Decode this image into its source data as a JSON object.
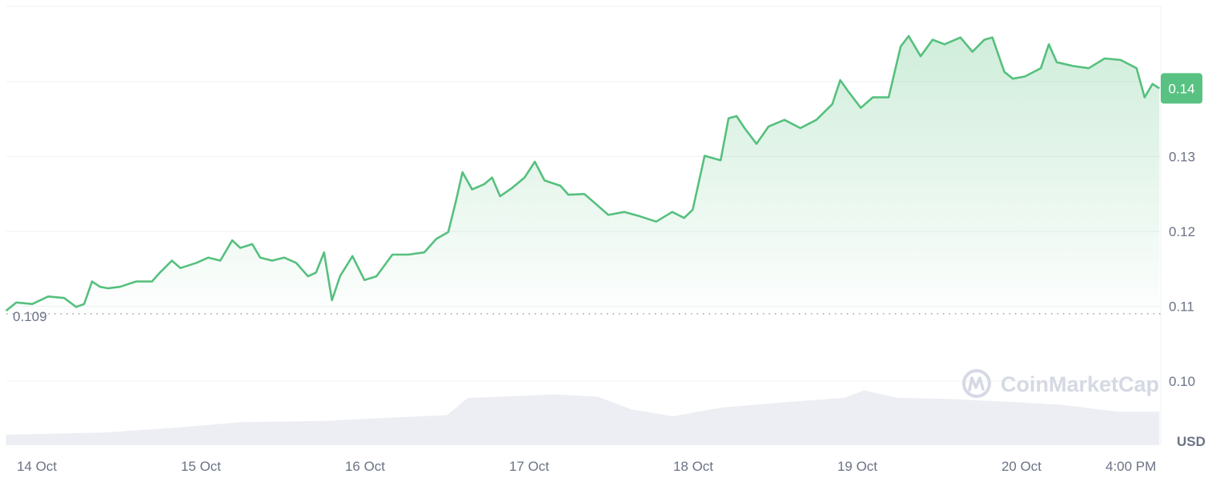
{
  "chart_data": {
    "type": "area",
    "currency_label": "USD",
    "watermark": "CoinMarketCap",
    "current_price_label": "0.14",
    "baseline": {
      "value": 0.109,
      "label": "0.109"
    },
    "ylim": [
      0.094,
      0.15
    ],
    "y_ticks": [
      {
        "value": 0.14,
        "label": "0.14"
      },
      {
        "value": 0.13,
        "label": "0.13"
      },
      {
        "value": 0.12,
        "label": "0.12"
      },
      {
        "value": 0.11,
        "label": "0.11"
      },
      {
        "value": 0.1,
        "label": "0.10"
      }
    ],
    "x_ticks": [
      {
        "time": "14 Oct 00:00",
        "label": "14 Oct"
      },
      {
        "time": "15 Oct 00:00",
        "label": "15 Oct"
      },
      {
        "time": "16 Oct 00:00",
        "label": "16 Oct"
      },
      {
        "time": "17 Oct 00:00",
        "label": "17 Oct"
      },
      {
        "time": "18 Oct 00:00",
        "label": "18 Oct"
      },
      {
        "time": "19 Oct 00:00",
        "label": "19 Oct"
      },
      {
        "time": "20 Oct 00:00",
        "label": "20 Oct"
      },
      {
        "time": "20 Oct 16:00",
        "label": "4:00 PM"
      }
    ],
    "grid": true,
    "colors": {
      "line": "#56c07e",
      "price_tag": "#58c282",
      "volume": "#eceef3",
      "grid": "#eff1f4",
      "text": "#6b7385"
    },
    "price": [
      [
        "13 Oct 19:30",
        0.1094
      ],
      [
        "13 Oct 21:00",
        0.1105
      ],
      [
        "13 Oct 23:20",
        0.1103
      ],
      [
        "14 Oct 01:40",
        0.1113
      ],
      [
        "14 Oct 04:00",
        0.1111
      ],
      [
        "14 Oct 05:45",
        0.1099
      ],
      [
        "14 Oct 06:55",
        0.1103
      ],
      [
        "14 Oct 08:05",
        0.1133
      ],
      [
        "14 Oct 09:15",
        0.1126
      ],
      [
        "14 Oct 10:25",
        0.1124
      ],
      [
        "14 Oct 12:10",
        0.1126
      ],
      [
        "14 Oct 14:30",
        0.1133
      ],
      [
        "14 Oct 16:50",
        0.1133
      ],
      [
        "14 Oct 18:00",
        0.1145
      ],
      [
        "14 Oct 19:45",
        0.1161
      ],
      [
        "14 Oct 21:00",
        0.1151
      ],
      [
        "14 Oct 23:20",
        0.1158
      ],
      [
        "15 Oct 01:05",
        0.1165
      ],
      [
        "15 Oct 02:50",
        0.1161
      ],
      [
        "15 Oct 04:35",
        0.1188
      ],
      [
        "15 Oct 05:45",
        0.1178
      ],
      [
        "15 Oct 07:30",
        0.1183
      ],
      [
        "15 Oct 08:40",
        0.1165
      ],
      [
        "15 Oct 10:25",
        0.1161
      ],
      [
        "15 Oct 12:10",
        0.1165
      ],
      [
        "15 Oct 13:55",
        0.1158
      ],
      [
        "15 Oct 15:40",
        0.114
      ],
      [
        "15 Oct 16:50",
        0.1145
      ],
      [
        "15 Oct 18:00",
        0.1172
      ],
      [
        "15 Oct 19:10",
        0.1108
      ],
      [
        "15 Oct 20:20",
        0.114
      ],
      [
        "15 Oct 22:10",
        0.1167
      ],
      [
        "15 Oct 23:55",
        0.1135
      ],
      [
        "16 Oct 01:40",
        0.114
      ],
      [
        "16 Oct 04:00",
        0.1169
      ],
      [
        "16 Oct 06:20",
        0.1169
      ],
      [
        "16 Oct 08:40",
        0.1172
      ],
      [
        "16 Oct 10:25",
        0.119
      ],
      [
        "16 Oct 12:10",
        0.1199
      ],
      [
        "16 Oct 13:20",
        0.1242
      ],
      [
        "16 Oct 14:15",
        0.1279
      ],
      [
        "16 Oct 15:40",
        0.1256
      ],
      [
        "16 Oct 17:25",
        0.1263
      ],
      [
        "16 Oct 18:35",
        0.1272
      ],
      [
        "16 Oct 19:45",
        0.1247
      ],
      [
        "16 Oct 21:30",
        0.1258
      ],
      [
        "16 Oct 23:20",
        0.1272
      ],
      [
        "17 Oct 00:50",
        0.1293
      ],
      [
        "17 Oct 02:15",
        0.1268
      ],
      [
        "17 Oct 04:35",
        0.1261
      ],
      [
        "17 Oct 05:45",
        0.1249
      ],
      [
        "17 Oct 08:05",
        0.125
      ],
      [
        "17 Oct 09:50",
        0.1236
      ],
      [
        "17 Oct 11:35",
        0.1222
      ],
      [
        "17 Oct 13:55",
        0.1226
      ],
      [
        "17 Oct 16:15",
        0.122
      ],
      [
        "17 Oct 18:35",
        0.1213
      ],
      [
        "17 Oct 20:55",
        0.1226
      ],
      [
        "17 Oct 22:40",
        0.1218
      ],
      [
        "17 Oct 23:55",
        0.1229
      ],
      [
        "18 Oct 01:40",
        0.1301
      ],
      [
        "18 Oct 04:00",
        0.1295
      ],
      [
        "18 Oct 05:10",
        0.1351
      ],
      [
        "18 Oct 06:20",
        0.1354
      ],
      [
        "18 Oct 07:30",
        0.1338
      ],
      [
        "18 Oct 09:15",
        0.1317
      ],
      [
        "18 Oct 11:00",
        0.134
      ],
      [
        "18 Oct 13:20",
        0.1349
      ],
      [
        "18 Oct 15:40",
        0.1338
      ],
      [
        "18 Oct 18:00",
        0.1349
      ],
      [
        "18 Oct 20:20",
        0.137
      ],
      [
        "18 Oct 21:30",
        0.1402
      ],
      [
        "18 Oct 22:45",
        0.1386
      ],
      [
        "19 Oct 00:30",
        0.1365
      ],
      [
        "19 Oct 02:15",
        0.1379
      ],
      [
        "19 Oct 04:35",
        0.1379
      ],
      [
        "19 Oct 06:20",
        0.1447
      ],
      [
        "19 Oct 07:30",
        0.1461
      ],
      [
        "19 Oct 09:15",
        0.1434
      ],
      [
        "19 Oct 11:00",
        0.1456
      ],
      [
        "19 Oct 12:45",
        0.145
      ],
      [
        "19 Oct 15:05",
        0.1459
      ],
      [
        "19 Oct 16:50",
        0.144
      ],
      [
        "19 Oct 18:35",
        0.1456
      ],
      [
        "19 Oct 19:45",
        0.1459
      ],
      [
        "19 Oct 21:30",
        0.1413
      ],
      [
        "19 Oct 22:45",
        0.1404
      ],
      [
        "20 Oct 00:30",
        0.1407
      ],
      [
        "20 Oct 02:50",
        0.1418
      ],
      [
        "20 Oct 04:00",
        0.145
      ],
      [
        "20 Oct 05:10",
        0.1426
      ],
      [
        "20 Oct 07:30",
        0.1421
      ],
      [
        "20 Oct 09:50",
        0.1418
      ],
      [
        "20 Oct 12:10",
        0.1431
      ],
      [
        "20 Oct 14:30",
        0.1429
      ],
      [
        "20 Oct 16:50",
        0.1418
      ],
      [
        "20 Oct 18:00",
        0.1379
      ],
      [
        "20 Oct 19:10",
        0.1397
      ],
      [
        "20 Oct 20:10",
        0.1391
      ]
    ],
    "volume_relative": [
      [
        "13 Oct 19:30",
        0.18
      ],
      [
        "14 Oct 10:00",
        0.22
      ],
      [
        "14 Oct 20:00",
        0.3
      ],
      [
        "15 Oct 06:00",
        0.4
      ],
      [
        "15 Oct 18:00",
        0.42
      ],
      [
        "16 Oct 04:00",
        0.48
      ],
      [
        "16 Oct 12:00",
        0.52
      ],
      [
        "16 Oct 15:00",
        0.82
      ],
      [
        "16 Oct 22:00",
        0.85
      ],
      [
        "17 Oct 04:00",
        0.88
      ],
      [
        "17 Oct 10:00",
        0.84
      ],
      [
        "17 Oct 15:00",
        0.62
      ],
      [
        "17 Oct 21:00",
        0.5
      ],
      [
        "18 Oct 04:00",
        0.65
      ],
      [
        "18 Oct 14:00",
        0.75
      ],
      [
        "18 Oct 22:00",
        0.82
      ],
      [
        "19 Oct 01:00",
        0.95
      ],
      [
        "19 Oct 06:00",
        0.82
      ],
      [
        "19 Oct 14:00",
        0.8
      ],
      [
        "20 Oct 00:00",
        0.74
      ],
      [
        "20 Oct 06:00",
        0.7
      ],
      [
        "20 Oct 14:00",
        0.58
      ],
      [
        "20 Oct 20:10",
        0.58
      ]
    ]
  }
}
